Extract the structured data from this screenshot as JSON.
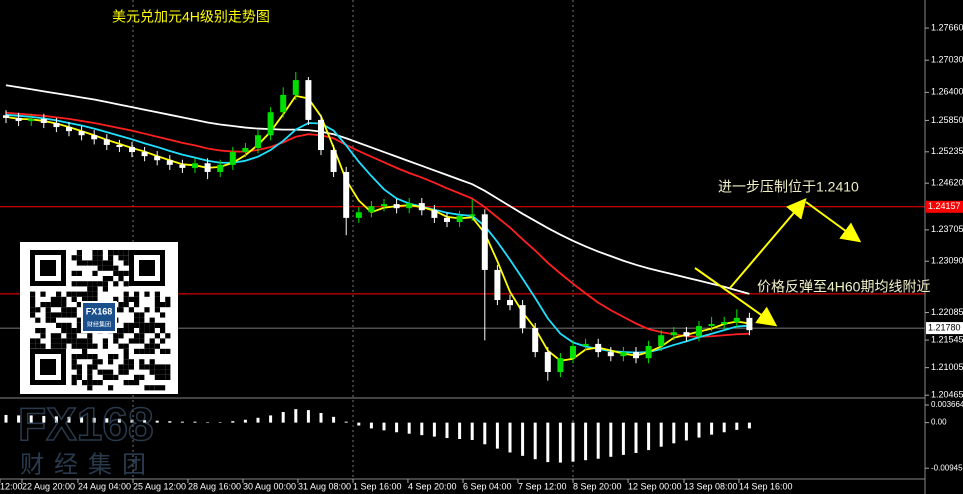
{
  "chart_data": [
    {
      "type": "candlestick",
      "title": "美元兑加元4H级别走势图",
      "open": [
        1.2595,
        1.259,
        1.2584,
        1.2588,
        1.258,
        1.2572,
        1.2564,
        1.2556,
        1.2548,
        1.2537,
        1.2533,
        1.2523,
        1.2515,
        1.2507,
        1.2498,
        1.2492,
        1.2501,
        1.2484,
        1.2498,
        1.2523,
        1.2531,
        1.2556,
        1.2601,
        1.2635,
        1.2664,
        1.2586,
        1.2527,
        1.2484,
        1.2394,
        1.2405,
        1.2417,
        1.2421,
        1.2413,
        1.2423,
        1.2409,
        1.2394,
        1.2386,
        1.2398,
        1.2401,
        1.2292,
        1.2233,
        1.2223,
        1.2178,
        1.2131,
        1.2092,
        1.2119,
        1.2143,
        1.2147,
        1.2131,
        1.2123,
        1.2131,
        1.2119,
        1.2143,
        1.2164,
        1.217,
        1.2162,
        1.2182,
        1.2186,
        1.219,
        1.2198
      ],
      "high": [
        1.2605,
        1.26,
        1.2598,
        1.2598,
        1.259,
        1.2582,
        1.2574,
        1.2566,
        1.2558,
        1.2547,
        1.2543,
        1.2533,
        1.2525,
        1.2517,
        1.2508,
        1.2511,
        1.2511,
        1.2508,
        1.2533,
        1.2541,
        1.2566,
        1.2611,
        1.265,
        1.268,
        1.267,
        1.2596,
        1.2537,
        1.2494,
        1.2415,
        1.2427,
        1.2431,
        1.2431,
        1.2433,
        1.2433,
        1.2419,
        1.2404,
        1.2408,
        1.243,
        1.2411,
        1.2302,
        1.2243,
        1.2233,
        1.2188,
        1.2141,
        1.2129,
        1.2153,
        1.2157,
        1.2157,
        1.2141,
        1.2141,
        1.2141,
        1.2153,
        1.2174,
        1.218,
        1.218,
        1.2192,
        1.22,
        1.22,
        1.2215,
        1.2208
      ],
      "low": [
        1.258,
        1.2574,
        1.2574,
        1.257,
        1.2562,
        1.2554,
        1.2546,
        1.2538,
        1.2527,
        1.2523,
        1.2513,
        1.2505,
        1.2497,
        1.2488,
        1.2482,
        1.2482,
        1.247,
        1.2474,
        1.2488,
        1.2513,
        1.2521,
        1.2546,
        1.2591,
        1.2625,
        1.2576,
        1.2517,
        1.2474,
        1.236,
        1.2384,
        1.2395,
        1.2407,
        1.2403,
        1.2403,
        1.2399,
        1.2384,
        1.2376,
        1.2376,
        1.2388,
        1.2154,
        1.2223,
        1.2213,
        1.2168,
        1.2121,
        1.2075,
        1.2082,
        1.2109,
        1.2133,
        1.2121,
        1.2113,
        1.2113,
        1.2109,
        1.2109,
        1.2133,
        1.2154,
        1.2152,
        1.2152,
        1.2172,
        1.2176,
        1.218,
        1.2164
      ],
      "close": [
        1.259,
        1.2584,
        1.2588,
        1.258,
        1.2572,
        1.2564,
        1.2556,
        1.2548,
        1.2537,
        1.2533,
        1.2523,
        1.2515,
        1.2507,
        1.2498,
        1.2492,
        1.2501,
        1.2484,
        1.2498,
        1.2523,
        1.2531,
        1.2556,
        1.2601,
        1.2635,
        1.2664,
        1.2586,
        1.2527,
        1.2484,
        1.2394,
        1.2405,
        1.2417,
        1.2421,
        1.2413,
        1.2423,
        1.2409,
        1.2394,
        1.2386,
        1.2398,
        1.2401,
        1.2292,
        1.2233,
        1.2223,
        1.2178,
        1.2131,
        1.2092,
        1.2119,
        1.2143,
        1.2147,
        1.2131,
        1.2123,
        1.2131,
        1.2119,
        1.2143,
        1.2164,
        1.217,
        1.2162,
        1.2182,
        1.2186,
        1.219,
        1.2198,
        1.2174
      ],
      "up_color": "#00e000",
      "down_color": "#ffffff",
      "lines": [
        {
          "color": "#ffffff",
          "values": [
            1.2654,
            1.265,
            1.2646,
            1.2642,
            1.2638,
            1.2634,
            1.263,
            1.2626,
            1.2621,
            1.2616,
            1.2611,
            1.2606,
            1.2601,
            1.2596,
            1.2591,
            1.2586,
            1.2581,
            1.2577,
            1.2574,
            1.2571,
            1.2569,
            1.2568,
            1.2567,
            1.2567,
            1.2566,
            1.2563,
            1.2558,
            1.255,
            1.2541,
            1.2532,
            1.2523,
            1.2514,
            1.2505,
            1.2496,
            1.2487,
            1.2478,
            1.2469,
            1.246,
            1.2447,
            1.2432,
            1.2417,
            1.2402,
            1.2388,
            1.2374,
            1.2361,
            1.2349,
            1.2338,
            1.2328,
            1.2319,
            1.231,
            1.2302,
            1.2295,
            1.2289,
            1.2283,
            1.2277,
            1.2271,
            1.2265,
            1.2259,
            1.2252,
            1.2245
          ]
        },
        {
          "color": "#ff2020",
          "values": [
            1.26,
            1.2598,
            1.2596,
            1.2594,
            1.2591,
            1.2588,
            1.2584,
            1.258,
            1.2575,
            1.257,
            1.2565,
            1.2559,
            1.2553,
            1.2547,
            1.2541,
            1.2536,
            1.253,
            1.2526,
            1.2524,
            1.2524,
            1.2527,
            1.2533,
            1.2542,
            1.2553,
            1.2558,
            1.2556,
            1.255,
            1.2537,
            1.2525,
            1.2514,
            1.2503,
            1.2492,
            1.2482,
            1.2473,
            1.2463,
            1.2452,
            1.2442,
            1.2432,
            1.2415,
            1.2395,
            1.2375,
            1.2352,
            1.233,
            1.2306,
            1.2285,
            1.2265,
            1.2246,
            1.2228,
            1.2213,
            1.22,
            1.2187,
            1.2176,
            1.217,
            1.2166,
            1.2162,
            1.2161,
            1.2162,
            1.2164,
            1.2166,
            1.2167
          ]
        },
        {
          "color": "#20e0ff",
          "values": [
            1.2596,
            1.2594,
            1.2592,
            1.2589,
            1.2585,
            1.258,
            1.2575,
            1.2569,
            1.2562,
            1.2555,
            1.2548,
            1.254,
            1.2533,
            1.2525,
            1.2518,
            1.2512,
            1.2506,
            1.2502,
            1.2502,
            1.2506,
            1.2514,
            1.2527,
            1.2545,
            1.2567,
            1.258,
            1.2579,
            1.2565,
            1.2536,
            1.2504,
            1.2476,
            1.245,
            1.2432,
            1.2422,
            1.2416,
            1.241,
            1.2404,
            1.24,
            1.2398,
            1.2378,
            1.2347,
            1.2312,
            1.2275,
            1.2237,
            1.2197,
            1.2167,
            1.215,
            1.2142,
            1.2137,
            1.2133,
            1.2131,
            1.213,
            1.2131,
            1.2137,
            1.2145,
            1.2152,
            1.216,
            1.2167,
            1.2174,
            1.2181,
            1.2183
          ]
        },
        {
          "color": "#ffff00",
          "values": [
            1.2592,
            1.2588,
            1.2587,
            1.2584,
            1.2579,
            1.2572,
            1.2564,
            1.2556,
            1.2547,
            1.2539,
            1.2531,
            1.2524,
            1.2515,
            1.2507,
            1.2499,
            1.2497,
            1.2492,
            1.2494,
            1.2502,
            1.2517,
            1.2537,
            1.2563,
            1.2597,
            1.2633,
            1.2628,
            1.2593,
            1.2532,
            1.2468,
            1.2428,
            1.2405,
            1.2414,
            1.2417,
            1.2419,
            1.2415,
            1.2408,
            1.2396,
            1.2393,
            1.2395,
            1.2364,
            1.2309,
            1.2249,
            1.2209,
            1.2177,
            1.2134,
            1.2114,
            1.2118,
            1.2136,
            1.214,
            1.2134,
            1.2128,
            1.2124,
            1.2131,
            1.2142,
            1.2159,
            1.2165,
            1.2171,
            1.2177,
            1.2186,
            1.2191,
            1.2187
          ]
        }
      ],
      "ylim": [
        1.2041,
        1.2821
      ],
      "yticks": [
        {
          "value": 1.2766,
          "label": "1.27660"
        },
        {
          "value": 1.2703,
          "label": "1.27030"
        },
        {
          "value": 1.264,
          "label": "1.26400"
        },
        {
          "value": 1.2585,
          "label": "1.25850"
        },
        {
          "value": 1.25235,
          "label": "1.25235"
        },
        {
          "value": 1.2462,
          "label": "1.24620"
        },
        {
          "value": 1.23705,
          "label": "1.23705"
        },
        {
          "value": 1.2309,
          "label": "1.23090"
        },
        {
          "value": 1.22085,
          "label": "1.22085"
        },
        {
          "value": 1.21545,
          "label": "1.21545"
        },
        {
          "value": 1.21005,
          "label": "1.21005"
        },
        {
          "value": 1.20465,
          "label": "1.20465"
        }
      ],
      "xticks": [
        {
          "value": -0.48,
          "label": "12:00"
        },
        {
          "value": 1.27,
          "label": "22 Aug 20:00"
        },
        {
          "value": 5.71,
          "label": "24 Aug 04:00"
        },
        {
          "value": 10.08,
          "label": "25 Aug 12:00"
        },
        {
          "value": 14.44,
          "label": "28 Aug 16:00"
        },
        {
          "value": 18.81,
          "label": "30 Aug 00:00"
        },
        {
          "value": 23.17,
          "label": "31 Aug 08:00"
        },
        {
          "value": 27.54,
          "label": "1 Sep 16:00"
        },
        {
          "value": 31.9,
          "label": "4 Sep 20:00"
        },
        {
          "value": 36.27,
          "label": "6 Sep 04:00"
        },
        {
          "value": 40.63,
          "label": "7 Sep 12:00"
        },
        {
          "value": 45,
          "label": "8 Sep 20:00"
        },
        {
          "value": 49.37,
          "label": "12 Sep 00:00"
        },
        {
          "value": 53.81,
          "label": "13 Sep 08:00"
        },
        {
          "value": 58.17,
          "label": "14 Sep 16:00"
        }
      ],
      "levels": [
        {
          "value": 1.24157,
          "label": "1.24157",
          "color": "#ff0000"
        },
        {
          "value": 1.2245,
          "color": "#ff0000"
        }
      ],
      "current": {
        "value": 1.2178,
        "label": "1.21780",
        "color": "#a0a0a0"
      },
      "annotations": [
        "进一步压制位于1.2410",
        "价格反弹至4H60期均线附近"
      ]
    },
    {
      "type": "bar",
      "color": "#ffffff",
      "values": [
        0.0016,
        0.0015,
        0.0015,
        0.0014,
        0.0013,
        0.0012,
        0.0011,
        0.001,
        0.0009,
        0.0008,
        0.0006,
        0.0005,
        0.0004,
        0.0003,
        0.0002,
        0.0002,
        0.0001,
        0.0001,
        0.0003,
        0.0006,
        0.001,
        0.0015,
        0.0022,
        0.0028,
        0.0026,
        0.002,
        0.0012,
        0.0002,
        -0.0006,
        -0.0012,
        -0.0016,
        -0.002,
        -0.0023,
        -0.0026,
        -0.0029,
        -0.0032,
        -0.0034,
        -0.0036,
        -0.0045,
        -0.0054,
        -0.0062,
        -0.0069,
        -0.0076,
        -0.0082,
        -0.0083,
        -0.0081,
        -0.0078,
        -0.0075,
        -0.0071,
        -0.0067,
        -0.0063,
        -0.0057,
        -0.005,
        -0.0043,
        -0.0037,
        -0.0031,
        -0.0025,
        -0.002,
        -0.0015,
        -0.0012
      ],
      "ylim": [
        -0.0115,
        0.0047
      ],
      "yticks": [
        0.003664,
        {
          "value": 0,
          "label": "0.00"
        },
        -0.009459
      ]
    }
  ],
  "watermark": {
    "logo": "FX168",
    "group": "财经集团"
  }
}
